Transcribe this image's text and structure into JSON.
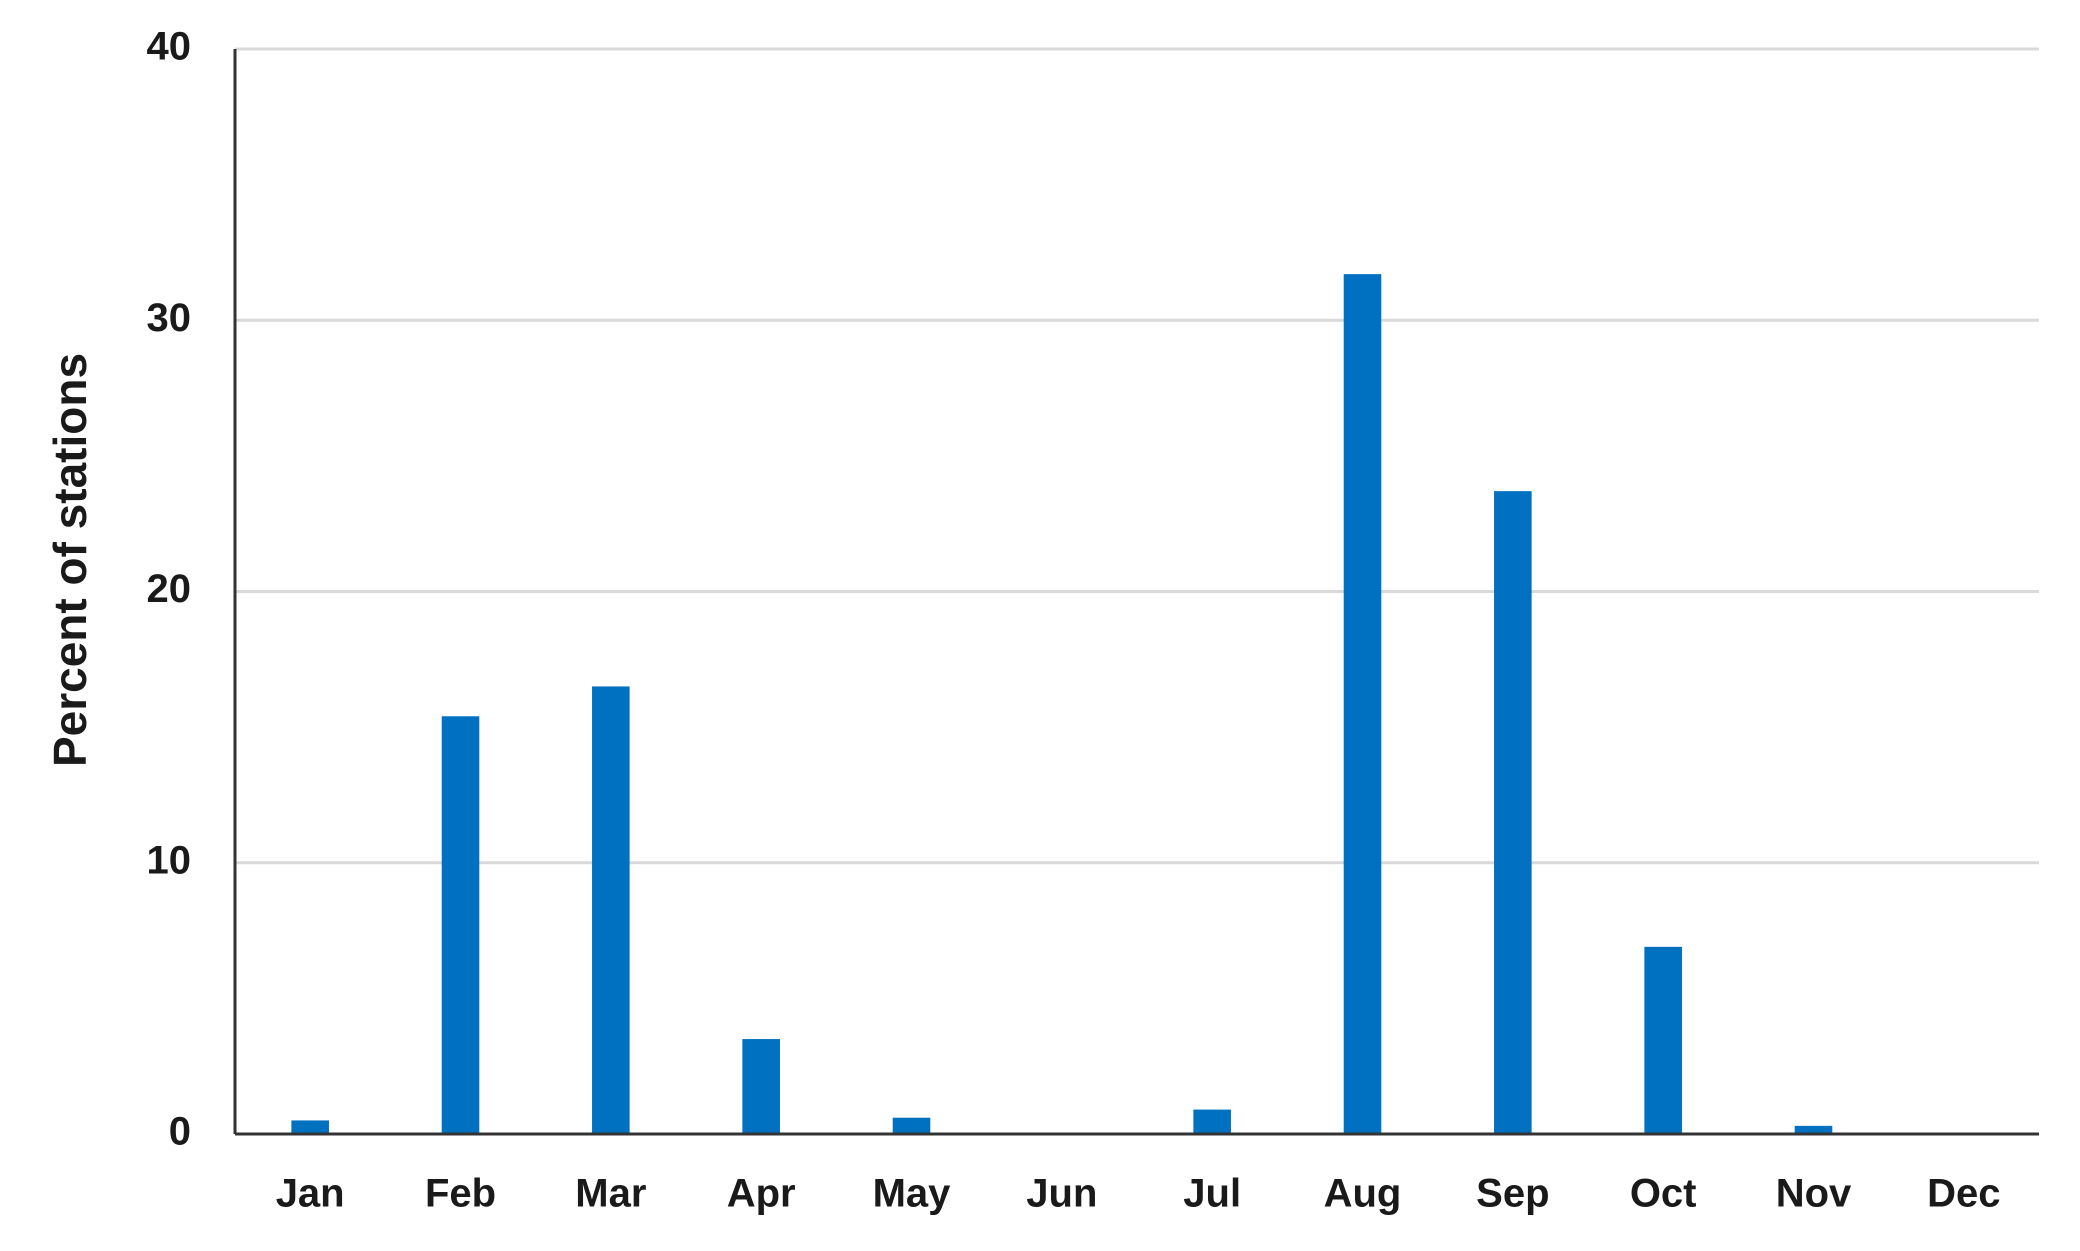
{
  "chart_data": {
    "type": "bar",
    "y_label": "Percent of  stations",
    "categories": [
      "Jan",
      "Feb",
      "Mar",
      "Apr",
      "May",
      "Jun",
      "Jul",
      "Aug",
      "Sep",
      "Oct",
      "Nov",
      "Dec"
    ],
    "values": [
      0.5,
      15.4,
      16.5,
      3.5,
      0.6,
      0,
      0.9,
      31.7,
      23.7,
      6.9,
      0.3,
      0
    ],
    "color": "#0070c0",
    "ylim": [
      0,
      40
    ],
    "yticks": [
      0,
      10,
      20,
      30,
      40
    ],
    "grid": true
  }
}
